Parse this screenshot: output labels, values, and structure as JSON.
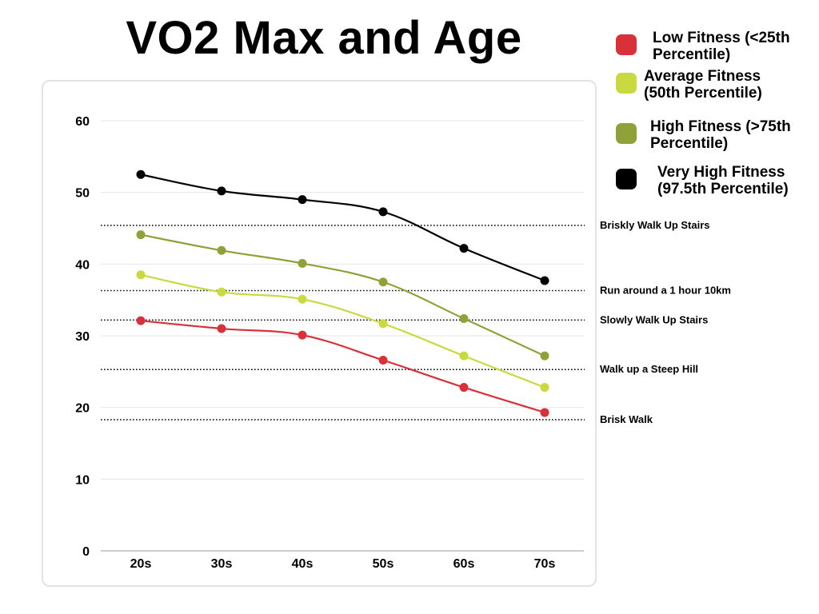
{
  "chart_data": {
    "type": "line",
    "title": "VO2 Max and Age",
    "xlabel": "",
    "ylabel": "",
    "categories": [
      "20s",
      "30s",
      "40s",
      "50s",
      "60s",
      "70s"
    ],
    "ylim": [
      0,
      60
    ],
    "yticks": [
      0,
      10,
      20,
      30,
      40,
      50,
      60
    ],
    "grid": true,
    "legend_position": "right",
    "series": [
      {
        "name": "Low Fitness (<25th\nPercentile)",
        "color": "#d9313a",
        "values": [
          32.1,
          31.0,
          30.1,
          26.6,
          22.8,
          19.3
        ]
      },
      {
        "name": "Average Fitness\n(50th Percentile)",
        "color": "#c8da3f",
        "values": [
          38.5,
          36.1,
          35.1,
          31.7,
          27.2,
          22.8
        ]
      },
      {
        "name": "High Fitness (>75th\nPercentile)",
        "color": "#8fa23a",
        "values": [
          44.1,
          41.9,
          40.1,
          37.5,
          32.4,
          27.2
        ]
      },
      {
        "name": "Very High Fitness\n(97.5th Percentile)",
        "color": "#000000",
        "values": [
          52.5,
          50.2,
          49.0,
          47.3,
          42.2,
          37.7
        ]
      }
    ],
    "reference_lines": [
      {
        "label": "Briskly Walk Up Stairs",
        "value": 45.4
      },
      {
        "label": "Run around a 1 hour 10km",
        "value": 36.3
      },
      {
        "label": "Slowly Walk Up Stairs",
        "value": 32.2
      },
      {
        "label": "Walk up a Steep Hill",
        "value": 25.3
      },
      {
        "label": "Brisk Walk",
        "value": 18.3
      }
    ]
  }
}
